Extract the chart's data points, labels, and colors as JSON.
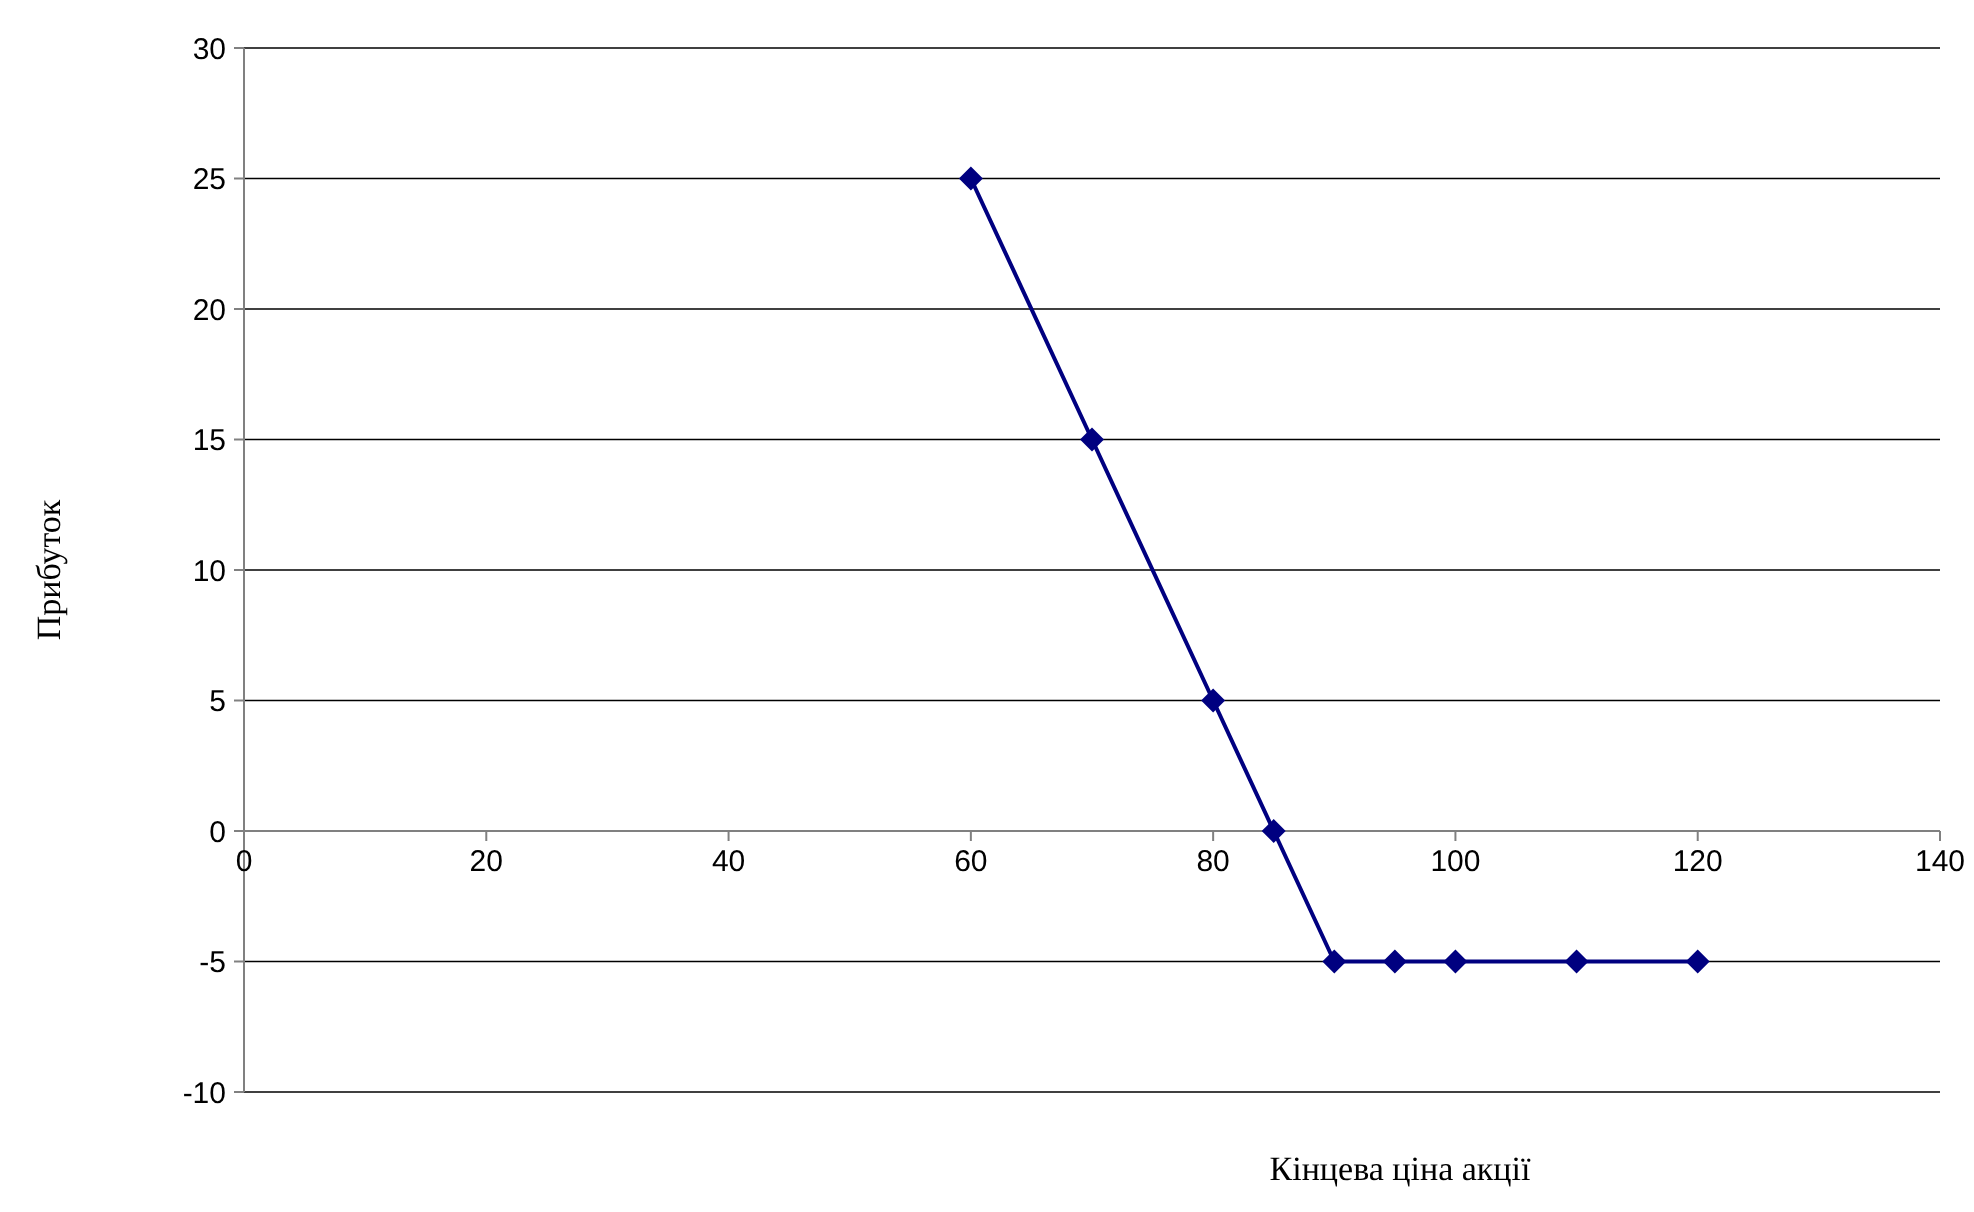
{
  "chart_data": {
    "type": "line",
    "xlabel": "Кінцева ціна акції",
    "ylabel": "Прибуток",
    "x": [
      60,
      70,
      80,
      85,
      90,
      95,
      100,
      110,
      120
    ],
    "series": [
      {
        "color": "#000080",
        "values": [
          25,
          15,
          5,
          0,
          -5,
          -5,
          -5,
          -5,
          -5
        ]
      }
    ],
    "xlim": [
      0,
      140
    ],
    "xticks": [
      0,
      20,
      40,
      60,
      80,
      100,
      120,
      140
    ],
    "ylim": [
      -10,
      30
    ],
    "yticks": [
      -10,
      -5,
      0,
      5,
      10,
      15,
      20,
      25,
      30
    ],
    "grid": "y",
    "marker": "diamond",
    "line_style": "solid"
  }
}
